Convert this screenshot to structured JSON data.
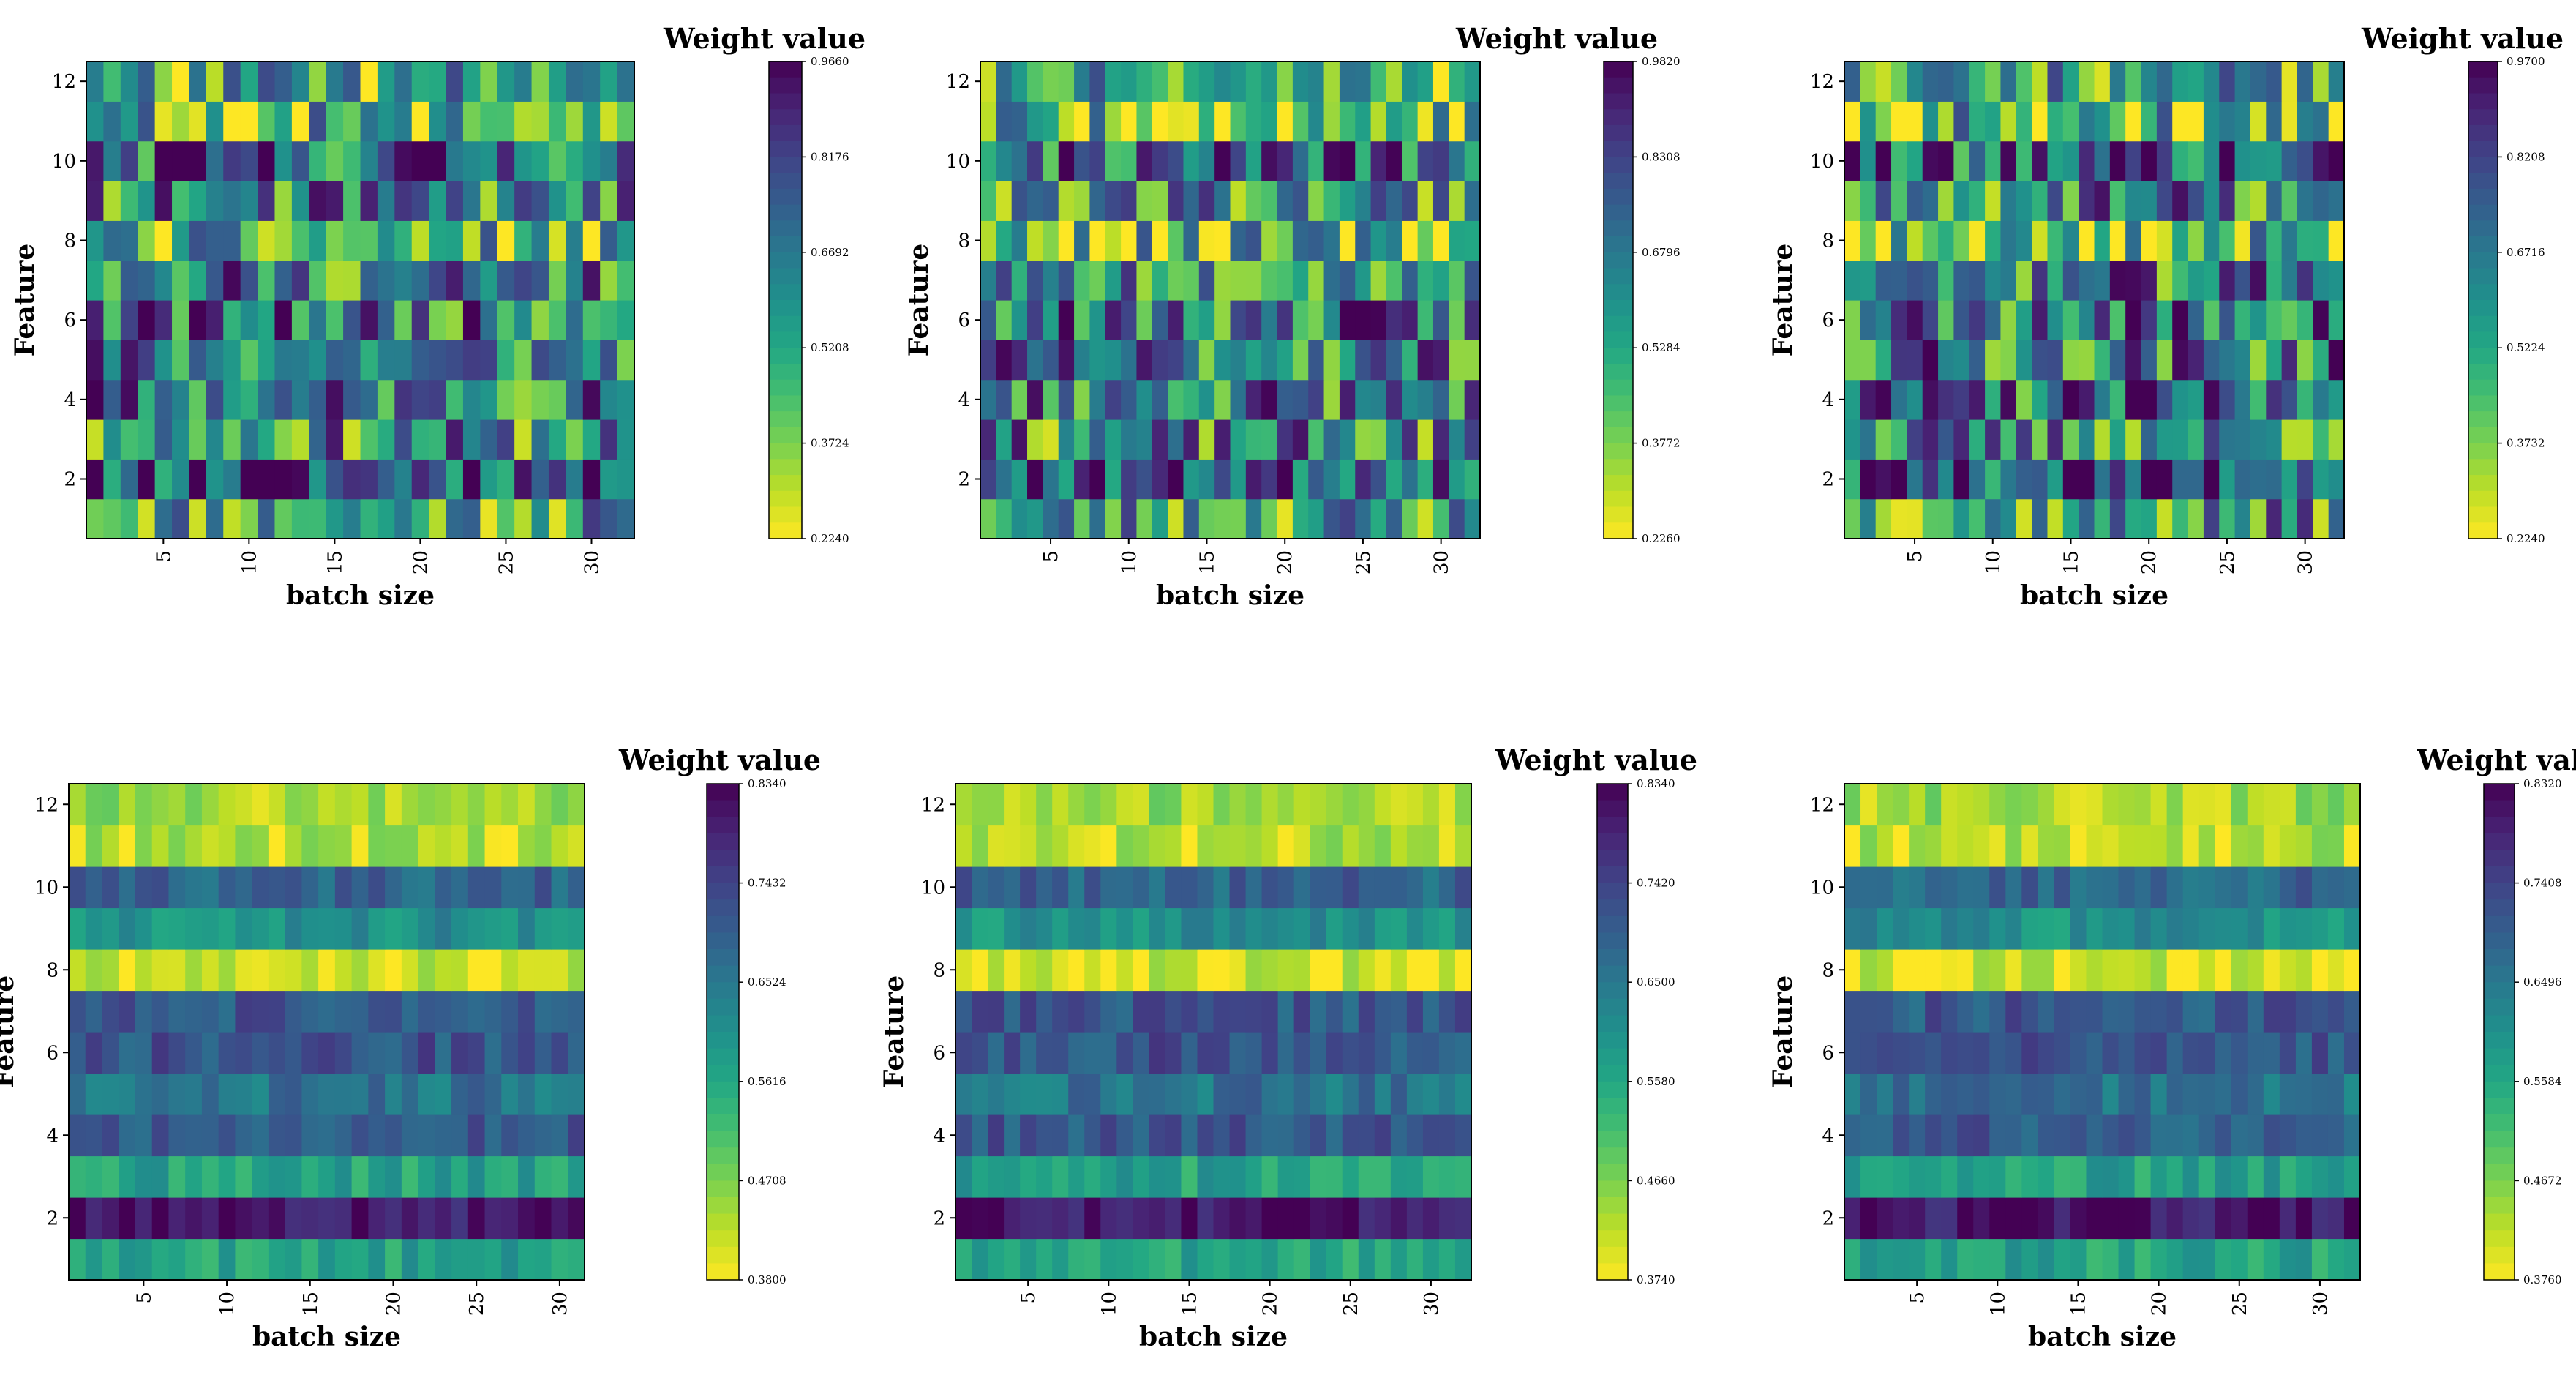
{
  "chart_data": [
    {
      "type": "heatmap",
      "id": "top-left",
      "xlabel": "batch size",
      "ylabel": "Feature",
      "colorbar_title": "Weight value",
      "x_ticks": [
        "5",
        "10",
        "15",
        "20",
        "25",
        "30"
      ],
      "y_ticks": [
        "2",
        "4",
        "6",
        "8",
        "10",
        "12"
      ],
      "x_count": 32,
      "y_count": 12,
      "vmin": 0.224,
      "vmax": 0.966,
      "colorbar_ticks": [
        "0.2240",
        "0.3724",
        "0.5208",
        "0.6692",
        "0.8176",
        "0.9660"
      ],
      "pattern": "random",
      "seed": 11
    },
    {
      "type": "heatmap",
      "id": "top-middle",
      "xlabel": "batch size",
      "ylabel": "Feature",
      "colorbar_title": "Weight value",
      "x_ticks": [
        "5",
        "10",
        "15",
        "20",
        "25",
        "30"
      ],
      "y_ticks": [
        "2",
        "4",
        "6",
        "8",
        "10",
        "12"
      ],
      "x_count": 32,
      "y_count": 12,
      "vmin": 0.226,
      "vmax": 0.982,
      "colorbar_ticks": [
        "0.2260",
        "0.3772",
        "0.5284",
        "0.6796",
        "0.8308",
        "0.9820"
      ],
      "pattern": "random",
      "seed": 23
    },
    {
      "type": "heatmap",
      "id": "top-right",
      "xlabel": "batch size",
      "ylabel": "Feature",
      "colorbar_title": "Weight value",
      "x_ticks": [
        "5",
        "10",
        "15",
        "20",
        "25",
        "30"
      ],
      "y_ticks": [
        "2",
        "4",
        "6",
        "8",
        "10",
        "12"
      ],
      "x_count": 32,
      "y_count": 12,
      "vmin": 0.224,
      "vmax": 0.97,
      "colorbar_ticks": [
        "0.2240",
        "0.3732",
        "0.5224",
        "0.6716",
        "0.8208",
        "0.9700"
      ],
      "pattern": "random",
      "seed": 37
    },
    {
      "type": "heatmap",
      "id": "bottom-left",
      "xlabel": "batch size",
      "ylabel": "Feature",
      "colorbar_title": "Weight value",
      "x_ticks": [
        "5",
        "10",
        "15",
        "20",
        "25",
        "30"
      ],
      "y_ticks": [
        "2",
        "4",
        "6",
        "8",
        "10",
        "12"
      ],
      "x_count": 31,
      "y_count": 12,
      "vmin": 0.38,
      "vmax": 0.834,
      "colorbar_ticks": [
        "0.3800",
        "0.4708",
        "0.5616",
        "0.6524",
        "0.7432",
        "0.8340"
      ],
      "pattern": "banded",
      "seed": 5
    },
    {
      "type": "heatmap",
      "id": "bottom-middle",
      "xlabel": "batch size",
      "ylabel": "Feature",
      "colorbar_title": "Weight value",
      "x_ticks": [
        "5",
        "10",
        "15",
        "20",
        "25",
        "30"
      ],
      "y_ticks": [
        "2",
        "4",
        "6",
        "8",
        "10",
        "12"
      ],
      "x_count": 32,
      "y_count": 12,
      "vmin": 0.374,
      "vmax": 0.834,
      "colorbar_ticks": [
        "0.3740",
        "0.4660",
        "0.5580",
        "0.6500",
        "0.7420",
        "0.8340"
      ],
      "pattern": "banded",
      "seed": 17
    },
    {
      "type": "heatmap",
      "id": "bottom-right",
      "xlabel": "batch size",
      "ylabel": "Feature",
      "colorbar_title": "Weight value",
      "x_ticks": [
        "5",
        "10",
        "15",
        "20",
        "25",
        "30"
      ],
      "y_ticks": [
        "2",
        "4",
        "6",
        "8",
        "10",
        "12"
      ],
      "x_count": 32,
      "y_count": 12,
      "vmin": 0.376,
      "vmax": 0.832,
      "colorbar_ticks": [
        "0.3760",
        "0.4672",
        "0.5584",
        "0.6496",
        "0.7408",
        "0.8320"
      ],
      "pattern": "banded",
      "seed": 29
    }
  ]
}
